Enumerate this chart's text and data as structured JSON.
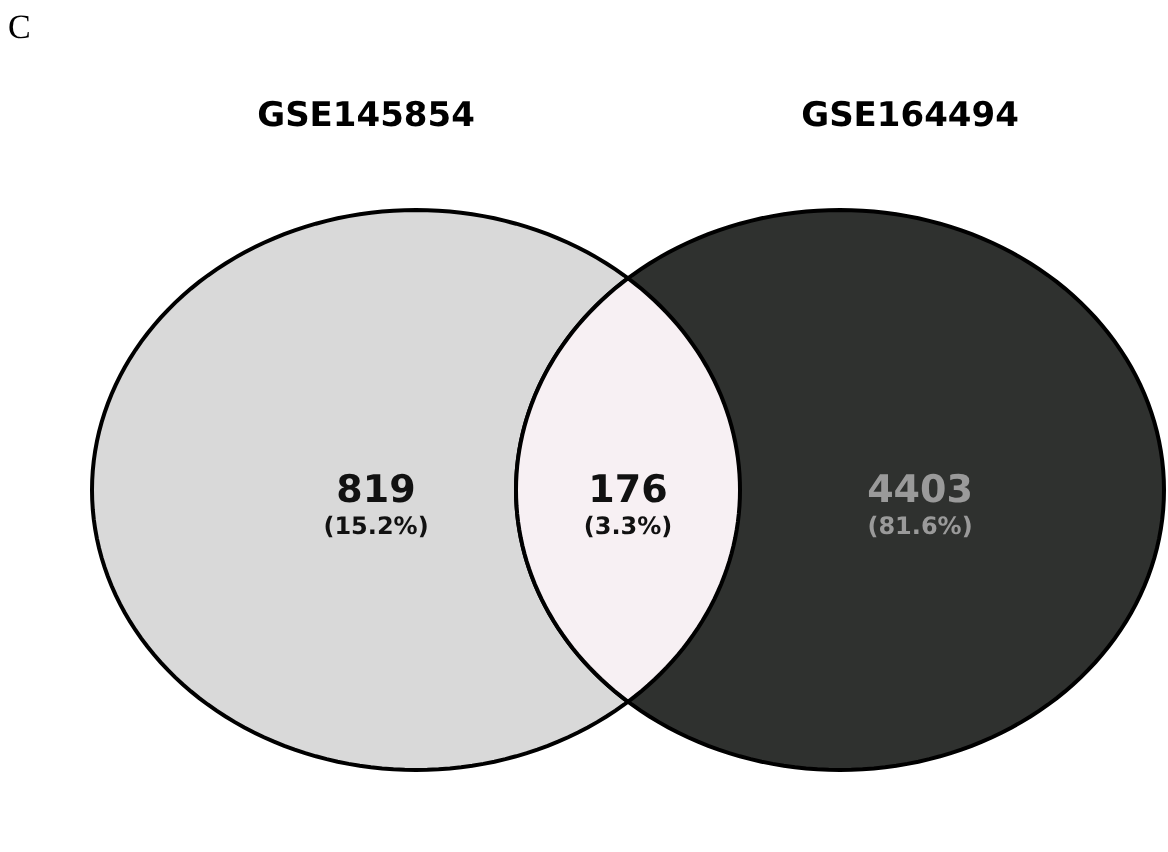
{
  "chart_data": {
    "type": "other",
    "annotations": [
      "C",
      "GSE145854",
      "GSE164494",
      "(15.2%)",
      "(3.3%)",
      "(81.6%)"
    ],
    "categories": [
      null,
      null,
      null
    ],
    "values": [
      819,
      176,
      4403
    ],
    "data_labels": true,
    "colors": [
      "#d9d9d9",
      "#f7f0f3",
      "#2f312f"
    ]
  }
}
